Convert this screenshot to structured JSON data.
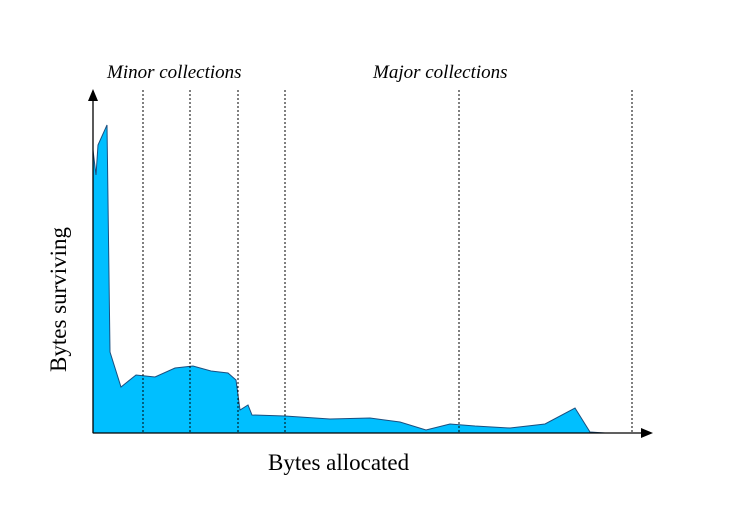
{
  "labels": {
    "minor": "Minor collections",
    "major": "Major collections",
    "x_axis": "Bytes allocated",
    "y_axis": "Bytes surviving"
  },
  "colors": {
    "area_fill": "#00bfff",
    "axis": "#000000",
    "collection_line": "#000000"
  },
  "collections": {
    "minor_count": 4,
    "major_count": 2
  }
}
